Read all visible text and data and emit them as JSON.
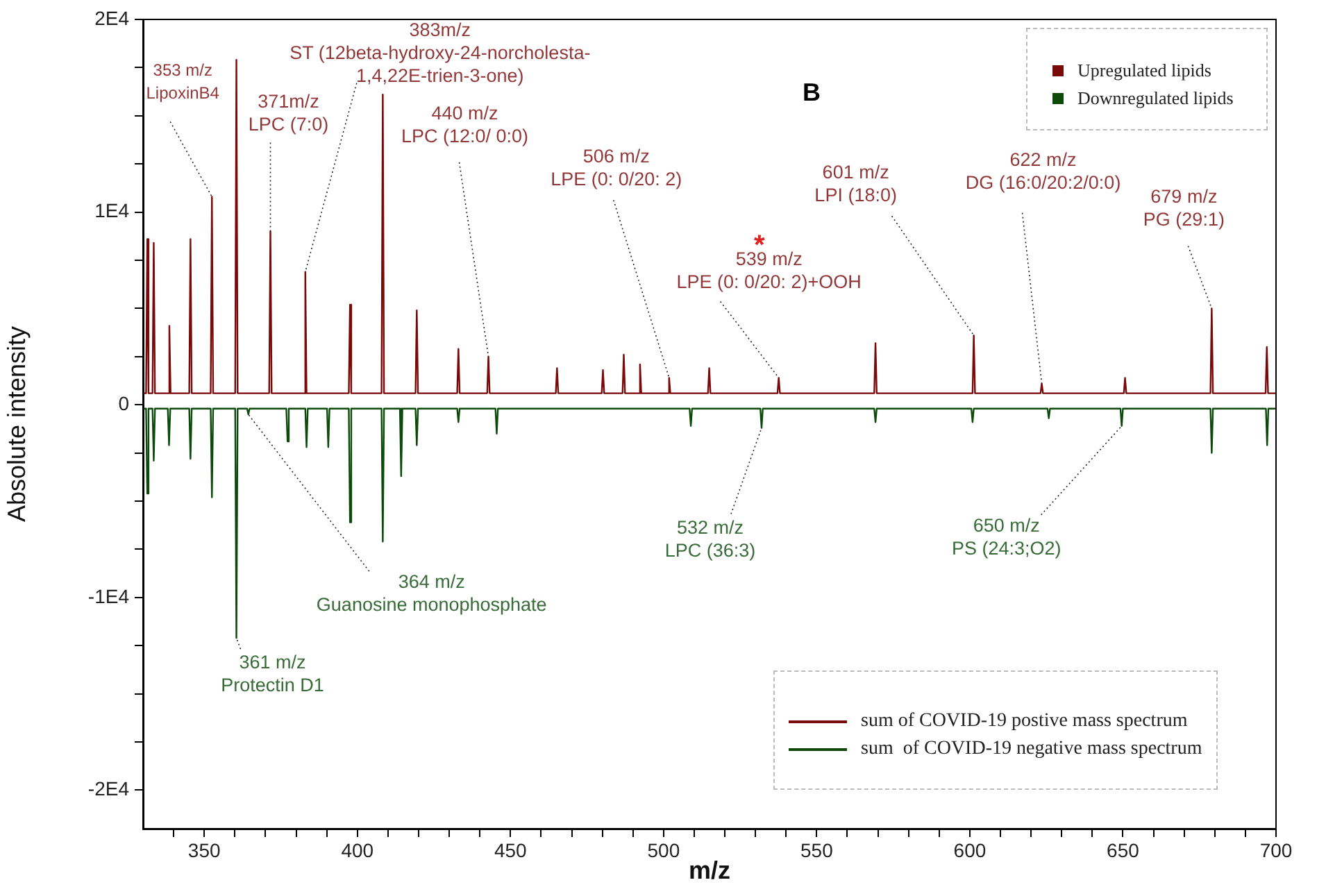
{
  "chart_data": {
    "type": "line",
    "ylabel": "Absolute intensity",
    "xlabel": "m/z",
    "xlim": [
      330,
      700
    ],
    "ylim": [
      -22000,
      20000
    ],
    "xticks": [
      {
        "value": 340,
        "label": null
      },
      350,
      {
        "value": 360,
        "label": null
      },
      {
        "value": 370,
        "label": null
      },
      {
        "value": 380,
        "label": null
      },
      {
        "value": 390,
        "label": null
      },
      400,
      {
        "value": 410,
        "label": null
      },
      {
        "value": 420,
        "label": null
      },
      {
        "value": 430,
        "label": null
      },
      {
        "value": 440,
        "label": null
      },
      450,
      {
        "value": 460,
        "label": null
      },
      {
        "value": 470,
        "label": null
      },
      {
        "value": 480,
        "label": null
      },
      {
        "value": 490,
        "label": null
      },
      500,
      {
        "value": 510,
        "label": null
      },
      {
        "value": 520,
        "label": null
      },
      {
        "value": 530,
        "label": null
      },
      {
        "value": 540,
        "label": null
      },
      550,
      {
        "value": 560,
        "label": null
      },
      {
        "value": 570,
        "label": null
      },
      {
        "value": 580,
        "label": null
      },
      {
        "value": 590,
        "label": null
      },
      600,
      {
        "value": 610,
        "label": null
      },
      {
        "value": 620,
        "label": null
      },
      {
        "value": 630,
        "label": null
      },
      {
        "value": 640,
        "label": null
      },
      650,
      {
        "value": 660,
        "label": null
      },
      {
        "value": 670,
        "label": null
      },
      {
        "value": 680,
        "label": null
      },
      {
        "value": 690,
        "label": null
      },
      700
    ],
    "yticks": [
      {
        "value": 20000,
        "label": "2E4"
      },
      {
        "value": 17500,
        "label": null
      },
      {
        "value": 15000,
        "label": null
      },
      {
        "value": 12500,
        "label": null
      },
      {
        "value": 10000,
        "label": "1E4"
      },
      {
        "value": 7500,
        "label": null
      },
      {
        "value": 5000,
        "label": null
      },
      {
        "value": 2500,
        "label": null
      },
      0,
      {
        "value": -2500,
        "label": null
      },
      {
        "value": -5000,
        "label": null
      },
      {
        "value": -7500,
        "label": null
      },
      {
        "value": -10000,
        "label": "-1E4"
      },
      {
        "value": -12500,
        "label": null
      },
      {
        "value": -15000,
        "label": null
      },
      {
        "value": -17500,
        "label": null
      },
      {
        "value": -20000,
        "label": "-2E4"
      }
    ],
    "grid": false,
    "legend": "top right",
    "marker": "none",
    "line_style": "solid",
    "series": [
      {
        "name": "Upregulated lipids",
        "color": "#7a0a0a",
        "x": [
          330,
          331,
          331.4,
          331.8,
          333.1,
          333.5,
          333.9,
          338.2,
          338.6,
          339,
          345.1,
          345.5,
          345.9,
          352.1,
          352.5,
          352.9,
          360.1,
          360.5,
          360.9,
          371.2,
          371.6,
          372,
          382.6,
          383,
          383.4,
          397.2,
          397.6,
          398,
          407.9,
          408.3,
          408.7,
          419,
          419.4,
          419.8,
          432.6,
          433,
          433.4,
          442.4,
          442.8,
          443.2,
          464.8,
          465.2,
          465.6,
          479.8,
          480.2,
          480.6,
          486.6,
          487,
          487.4,
          491.9,
          492.3,
          492.7,
          501.4,
          501.8,
          502.2,
          514.5,
          514.9,
          515.3,
          537.2,
          537.6,
          538,
          568.8,
          569.2,
          569.6,
          600.9,
          601.3,
          601.7,
          623.1,
          623.5,
          623.9,
          650.3,
          650.7,
          651.1,
          678.6,
          679,
          679.4,
          696.6,
          697,
          697.4,
          700
        ],
        "values": [
          600,
          600,
          8600,
          600,
          600,
          8400,
          600,
          600,
          4100,
          600,
          600,
          8600,
          600,
          600,
          10800,
          600,
          600,
          17900,
          600,
          600,
          9000,
          600,
          600,
          6900,
          600,
          600,
          5200,
          600,
          600,
          16100,
          600,
          600,
          4900,
          600,
          600,
          2900,
          600,
          600,
          2500,
          600,
          600,
          1900,
          600,
          600,
          1800,
          600,
          600,
          2600,
          600,
          600,
          2100,
          600,
          600,
          1400,
          600,
          600,
          1900,
          600,
          600,
          1400,
          600,
          600,
          3200,
          600,
          600,
          3600,
          600,
          600,
          1100,
          600,
          600,
          1400,
          600,
          600,
          5000,
          600,
          600,
          3000,
          600,
          600
        ]
      },
      {
        "name": "Downregulated lipids",
        "color": "#0b4a0b",
        "x": [
          330,
          331,
          331.4,
          331.8,
          333.1,
          333.5,
          333.9,
          338.1,
          338.5,
          338.9,
          345.1,
          345.5,
          345.9,
          352.1,
          352.5,
          352.9,
          360.1,
          360.5,
          360.9,
          364,
          364.4,
          364.8,
          376.8,
          377.2,
          377.6,
          383,
          383.4,
          383.8,
          390.1,
          390.5,
          390.9,
          397.2,
          397.6,
          398,
          407.9,
          408.3,
          408.7,
          413.9,
          414.3,
          414.7,
          419,
          419.4,
          419.8,
          432.6,
          433,
          433.4,
          445.1,
          445.5,
          445.9,
          508.5,
          508.9,
          509.3,
          531.6,
          532,
          532.4,
          568.8,
          569.2,
          569.6,
          600.5,
          600.9,
          601.3,
          625.4,
          625.8,
          626.2,
          649.2,
          649.6,
          650,
          678.6,
          679,
          679.4,
          696.7,
          697.1,
          697.5,
          700
        ],
        "values": [
          -200,
          -200,
          -4600,
          -200,
          -200,
          -2900,
          -200,
          -200,
          -2100,
          -200,
          -200,
          -2800,
          -200,
          -200,
          -4800,
          -200,
          -200,
          -12100,
          -200,
          -200,
          -500,
          -200,
          -200,
          -1900,
          -200,
          -200,
          -2200,
          -200,
          -200,
          -2200,
          -200,
          -200,
          -6100,
          -200,
          -200,
          -7100,
          -200,
          -200,
          -3700,
          -200,
          -200,
          -2100,
          -200,
          -200,
          -900,
          -200,
          -200,
          -1500,
          -200,
          -200,
          -1100,
          -200,
          -200,
          -1200,
          -200,
          -200,
          -900,
          -200,
          -200,
          -900,
          -200,
          -200,
          -700,
          -200,
          -200,
          -1100,
          -200,
          -200,
          -2500,
          -200,
          -200,
          -2100,
          -200,
          -200
        ]
      }
    ],
    "annotations": [
      "B",
      "*",
      "sum of COVID-19 postive mass spectrum",
      "sum  of COVID-19 negative mass spectrum",
      {
        "text": "353 m/z\nLipoxinB4",
        "x": 352.5,
        "y": 10800
      },
      {
        "text": "371m/z\nLPC (7:0)",
        "x": 371.6,
        "y": 9000
      },
      {
        "text": "383m/z\nST (12beta-hydroxy-24-norcholesta-\n1,4,22E-trien-3-one)",
        "x": 383,
        "y": 6900
      },
      {
        "text": "440 m/z\nLPC (12:0/ 0:0)",
        "x": 442.8,
        "y": 2500
      },
      {
        "text": "506 m/z\nLPE (0: 0/20: 2)",
        "x": 501.8,
        "y": 1400
      },
      {
        "text": "539 m/z\nLPE (0: 0/20: 2)+OOH",
        "x": 537.6,
        "y": 1400
      },
      {
        "text": "601 m/z\nLPI (18:0)",
        "x": 601.3,
        "y": 3600
      },
      {
        "text": "622 m/z\nDG (16:0/20:2/0:0)",
        "x": 623.5,
        "y": 1100
      },
      {
        "text": "679 m/z\nPG (29:1)",
        "x": 679,
        "y": 5000
      },
      {
        "text": "361 m/z\nProtectin D1",
        "x": 360.5,
        "y": -12100
      },
      {
        "text": "364 m/z\nGuanosine monophosphate",
        "x": 364.4,
        "y": -500
      },
      {
        "text": "532 m/z\nLPC (36:3)",
        "x": 532,
        "y": -1200
      },
      {
        "text": "650 m/z\nPS (24:3;O2)",
        "x": 649.6,
        "y": -1100
      }
    ]
  }
}
